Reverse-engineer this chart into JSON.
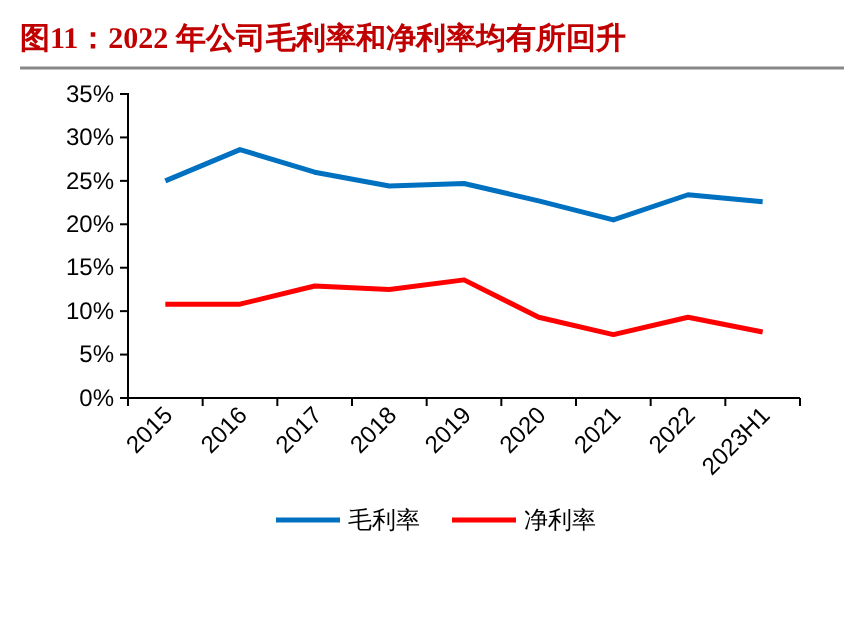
{
  "chart_data": {
    "type": "line",
    "title": "图11：2022 年公司毛利率和净利率均有所回升",
    "categories": [
      "2015",
      "2016",
      "2017",
      "2018",
      "2019",
      "2020",
      "2021",
      "2022",
      "2023H1"
    ],
    "series": [
      {
        "name": "毛利率",
        "color": "#0070c0",
        "values": [
          25.0,
          28.6,
          26.0,
          24.4,
          24.7,
          22.7,
          20.5,
          23.4,
          22.6
        ]
      },
      {
        "name": "净利率",
        "color": "#ff0000",
        "values": [
          10.8,
          10.8,
          12.9,
          12.5,
          13.6,
          9.3,
          7.3,
          9.3,
          7.6
        ]
      }
    ],
    "ylim": [
      0,
      35
    ],
    "yticks": [
      {
        "value": 0,
        "label": "0%"
      },
      {
        "value": 5,
        "label": "5%"
      },
      {
        "value": 10,
        "label": "10%"
      },
      {
        "value": 15,
        "label": "15%"
      },
      {
        "value": 20,
        "label": "20%"
      },
      {
        "value": 25,
        "label": "25%"
      },
      {
        "value": 30,
        "label": "30%"
      },
      {
        "value": 35,
        "label": "35%"
      }
    ],
    "grid": false,
    "legend": "bottom",
    "marker": "none",
    "line_style": "solid"
  }
}
